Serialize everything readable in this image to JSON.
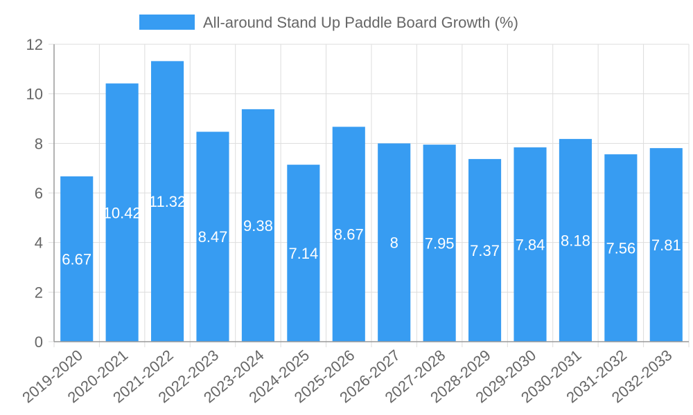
{
  "chart_data": {
    "type": "bar",
    "categories": [
      "2019-2020",
      "2020-2021",
      "2021-2022",
      "2022-2023",
      "2023-2024",
      "2024-2025",
      "2025-2026",
      "2026-2027",
      "2027-2028",
      "2028-2029",
      "2029-2030",
      "2030-2031",
      "2031-2032",
      "2032-2033"
    ],
    "series": [
      {
        "name": "All-around Stand Up Paddle Board Growth (%)",
        "values": [
          6.67,
          10.42,
          11.32,
          8.47,
          9.38,
          7.14,
          8.67,
          8,
          7.95,
          7.37,
          7.84,
          8.18,
          7.56,
          7.81
        ],
        "color": "#379cf2"
      }
    ],
    "data_labels": [
      "6.67",
      "10.42",
      "11.32",
      "8.47",
      "9.38",
      "7.14",
      "8.67",
      "8",
      "7.95",
      "7.37",
      "7.84",
      "8.18",
      "7.56",
      "7.81"
    ],
    "y_ticks": [
      "0",
      "2",
      "4",
      "6",
      "8",
      "10",
      "12"
    ],
    "ylim": [
      0,
      12
    ],
    "grid": true,
    "legend_position": "top-center",
    "xlabel": "",
    "ylabel": "",
    "title": "",
    "colors": {
      "grid": "#dddddd",
      "axis": "#999999",
      "text": "#666666",
      "label": "#ffffff"
    }
  }
}
